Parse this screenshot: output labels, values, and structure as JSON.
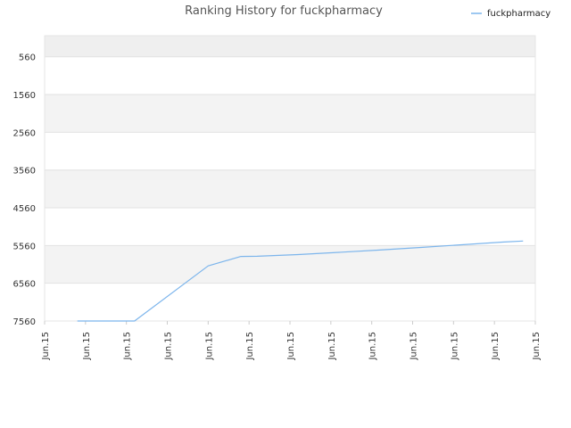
{
  "chart_data": {
    "type": "line",
    "title": "Ranking History for fuckpharmacy",
    "xlabel": "",
    "ylabel": "",
    "y_inverted": true,
    "ylim": [
      7560,
      0
    ],
    "y_ticks": [
      560,
      1560,
      2560,
      3560,
      4560,
      5560,
      6560,
      7560
    ],
    "y_tick_labels": [
      "560",
      "1560",
      "2560",
      "3560",
      "4560",
      "5560",
      "6560",
      "7560"
    ],
    "x_tick_labels": [
      "Jun.15",
      "Jun.15",
      "Jun.15",
      "Jun.15",
      "Jun.15",
      "Jun.15",
      "Jun.15",
      "Jun.15",
      "Jun.15",
      "Jun.15",
      "Jun.15",
      "Jun.15",
      "Jun.15"
    ],
    "grid": true,
    "legend_position": "top-right",
    "series": [
      {
        "name": "fuckpharmacy",
        "color": "#7cb5ec",
        "x": [
          0.8,
          1.1,
          2.2,
          4.0,
          4.8,
          5.2,
          6.2,
          7.2,
          8.2,
          9.2,
          10.2,
          11.2,
          11.7
        ],
        "values": [
          7560,
          7560,
          7560,
          6100,
          5850,
          5845,
          5800,
          5740,
          5680,
          5610,
          5540,
          5470,
          5440
        ]
      }
    ]
  }
}
